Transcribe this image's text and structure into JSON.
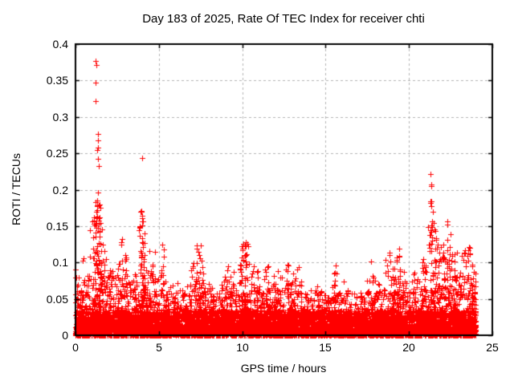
{
  "figure": {
    "background": "#ffffff"
  },
  "style": {
    "marker_color": "#ff0000",
    "grid_color": "#b3b3b3",
    "axis_color": "#000000",
    "text_color": "#000000"
  },
  "chart_data": {
    "type": "scatter",
    "title": "Day 183 of 2025, Rate Of TEC Index for receiver chti",
    "xlabel": "GPS time / hours",
    "ylabel": "ROTI / TECUs",
    "xlim": [
      0,
      25
    ],
    "ylim": [
      0,
      0.4
    ],
    "xticks": [
      0,
      5,
      10,
      15,
      20,
      25
    ],
    "xtick_labels": [
      "0",
      "5",
      "10",
      "15",
      "20",
      "25"
    ],
    "yticks": [
      0,
      0.05,
      0.1,
      0.15,
      0.2,
      0.25,
      0.3,
      0.35,
      0.4
    ],
    "ytick_labels": [
      "0",
      "0.05",
      "0.1",
      "0.15",
      "0.2",
      "0.25",
      "0.3",
      "0.35",
      "0.4"
    ],
    "grid": true,
    "legend": "none",
    "marker": "plus",
    "time_range_hours": [
      0,
      24
    ],
    "series": [
      {
        "name": "ROTI",
        "color": "#ff0000",
        "outliers": [
          [
            1.21,
            0.377
          ],
          [
            1.23,
            0.371
          ],
          [
            1.22,
            0.347
          ],
          [
            1.22,
            0.322
          ],
          [
            1.33,
            0.277
          ],
          [
            1.35,
            0.268
          ],
          [
            1.36,
            0.258
          ],
          [
            1.28,
            0.254
          ],
          [
            1.37,
            0.242
          ],
          [
            1.38,
            0.233
          ],
          [
            1.36,
            0.196
          ],
          [
            1.3,
            0.178
          ],
          [
            1.26,
            0.17
          ],
          [
            1.44,
            0.162
          ],
          [
            1.19,
            0.153
          ],
          [
            3.98,
            0.243
          ],
          [
            3.95,
            0.171
          ],
          [
            4.02,
            0.164
          ],
          [
            4.06,
            0.156
          ],
          [
            2.78,
            0.132
          ],
          [
            5.22,
            0.124
          ],
          [
            7.35,
            0.115
          ],
          [
            10.21,
            0.128
          ],
          [
            10.05,
            0.126
          ],
          [
            9.95,
            0.122
          ],
          [
            15.62,
            0.096
          ],
          [
            17.75,
            0.101
          ],
          [
            18.82,
            0.113
          ],
          [
            19.42,
            0.119
          ],
          [
            21.31,
            0.221
          ],
          [
            21.32,
            0.207
          ],
          [
            21.34,
            0.205
          ],
          [
            21.32,
            0.184
          ],
          [
            21.35,
            0.177
          ],
          [
            21.41,
            0.156
          ],
          [
            22.28,
            0.157
          ],
          [
            22.3,
            0.152
          ],
          [
            23.64,
            0.12
          ],
          [
            23.66,
            0.112
          ]
        ],
        "cluster_peaks": [
          [
            0.1,
            0.09
          ],
          [
            0.35,
            0.06
          ],
          [
            0.55,
            0.11
          ],
          [
            0.8,
            0.085
          ],
          [
            1.15,
            0.165
          ],
          [
            1.3,
            0.19
          ],
          [
            1.5,
            0.155
          ],
          [
            1.7,
            0.12
          ],
          [
            1.95,
            0.085
          ],
          [
            2.2,
            0.09
          ],
          [
            2.45,
            0.1
          ],
          [
            2.75,
            0.135
          ],
          [
            3.0,
            0.11
          ],
          [
            3.3,
            0.08
          ],
          [
            3.6,
            0.09
          ],
          [
            3.95,
            0.17
          ],
          [
            4.1,
            0.15
          ],
          [
            4.35,
            0.12
          ],
          [
            4.6,
            0.115
          ],
          [
            4.85,
            0.1
          ],
          [
            5.2,
            0.125
          ],
          [
            5.45,
            0.09
          ],
          [
            5.75,
            0.07
          ],
          [
            6.1,
            0.075
          ],
          [
            6.45,
            0.065
          ],
          [
            6.75,
            0.08
          ],
          [
            7.1,
            0.1
          ],
          [
            7.35,
            0.125
          ],
          [
            7.6,
            0.11
          ],
          [
            7.9,
            0.08
          ],
          [
            8.2,
            0.07
          ],
          [
            8.5,
            0.06
          ],
          [
            8.8,
            0.075
          ],
          [
            9.05,
            0.1
          ],
          [
            9.3,
            0.09
          ],
          [
            9.6,
            0.07
          ],
          [
            9.9,
            0.12
          ],
          [
            10.15,
            0.13
          ],
          [
            10.35,
            0.115
          ],
          [
            10.65,
            0.095
          ],
          [
            10.9,
            0.088
          ],
          [
            11.2,
            0.082
          ],
          [
            11.5,
            0.098
          ],
          [
            11.8,
            0.085
          ],
          [
            12.1,
            0.095
          ],
          [
            12.35,
            0.088
          ],
          [
            12.65,
            0.098
          ],
          [
            12.95,
            0.09
          ],
          [
            13.25,
            0.098
          ],
          [
            13.55,
            0.075
          ],
          [
            13.9,
            0.062
          ],
          [
            14.2,
            0.055
          ],
          [
            14.55,
            0.068
          ],
          [
            14.9,
            0.058
          ],
          [
            15.2,
            0.068
          ],
          [
            15.55,
            0.096
          ],
          [
            15.9,
            0.085
          ],
          [
            16.2,
            0.072
          ],
          [
            16.55,
            0.058
          ],
          [
            16.9,
            0.062
          ],
          [
            17.2,
            0.055
          ],
          [
            17.55,
            0.078
          ],
          [
            17.85,
            0.1
          ],
          [
            18.15,
            0.072
          ],
          [
            18.5,
            0.088
          ],
          [
            18.8,
            0.115
          ],
          [
            19.1,
            0.1
          ],
          [
            19.4,
            0.12
          ],
          [
            19.65,
            0.092
          ],
          [
            19.95,
            0.072
          ],
          [
            20.3,
            0.088
          ],
          [
            20.6,
            0.082
          ],
          [
            20.95,
            0.108
          ],
          [
            21.3,
            0.19
          ],
          [
            21.55,
            0.155
          ],
          [
            21.85,
            0.125
          ],
          [
            22.15,
            0.13
          ],
          [
            22.4,
            0.15
          ],
          [
            22.7,
            0.118
          ],
          [
            23.0,
            0.102
          ],
          [
            23.3,
            0.118
          ],
          [
            23.6,
            0.125
          ],
          [
            23.85,
            0.1
          ],
          [
            23.97,
            0.09
          ]
        ],
        "baseline": {
          "max": 0.034,
          "exponent": 1.5
        },
        "midlayer": {
          "max": 0.062,
          "exponent": 2.2
        }
      }
    ],
    "render": {
      "seed": 183,
      "base_points": 5000,
      "mid_points": 1500,
      "cluster_point_scale": 330,
      "cluster_min_points": 16,
      "cluster_sigma_hours": 0.09,
      "cluster_exponent": 1.8
    }
  }
}
